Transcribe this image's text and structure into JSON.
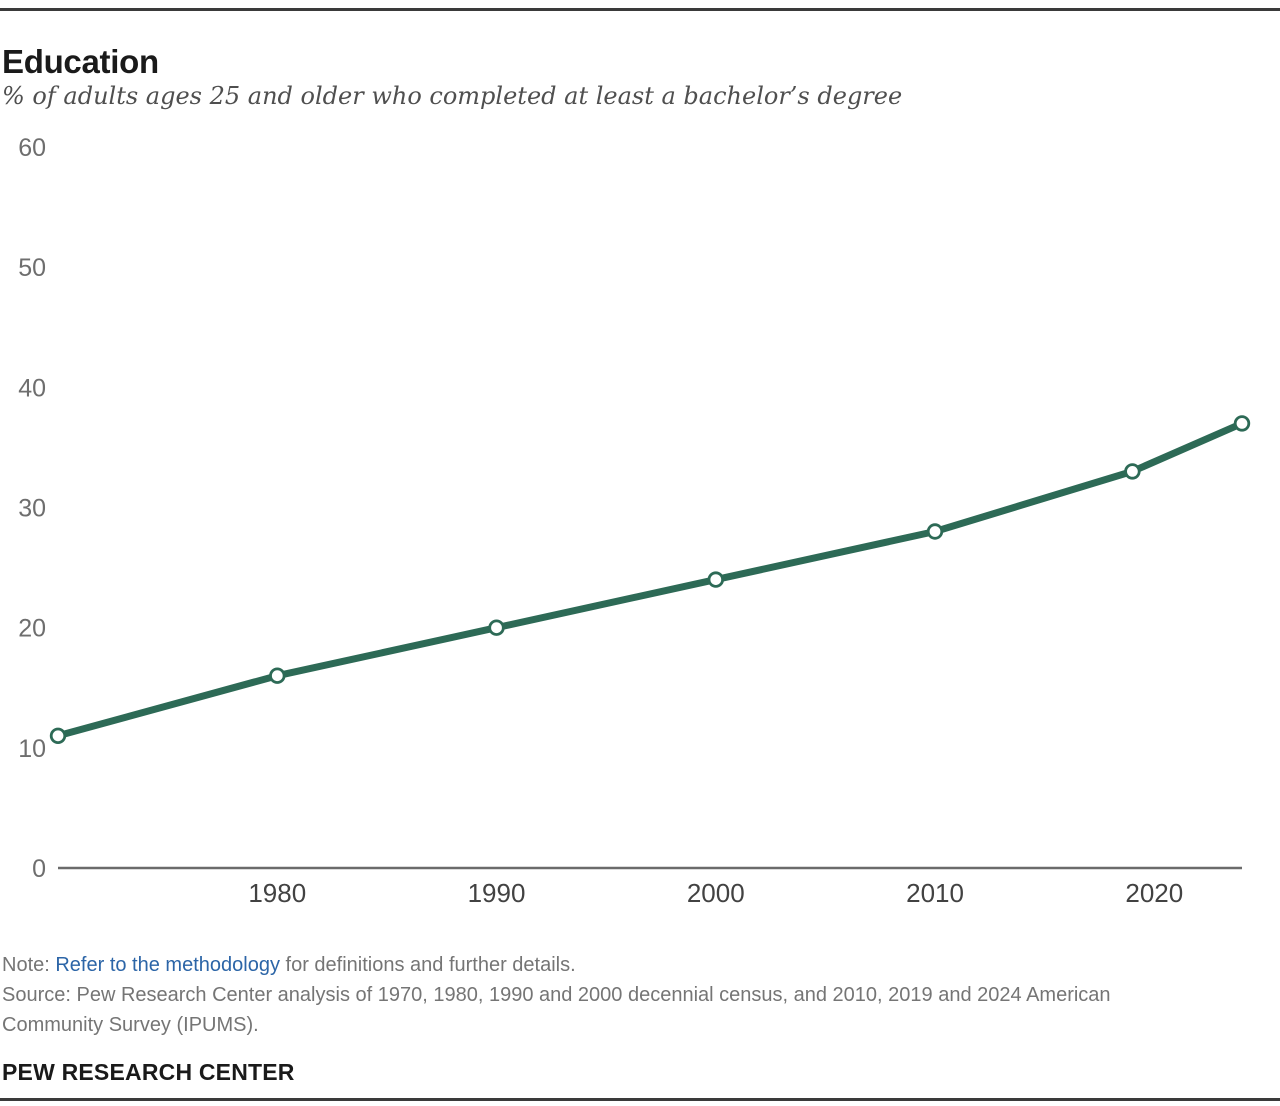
{
  "chart_data": {
    "type": "line",
    "title": "Education",
    "subtitle": "% of adults ages 25 and older who completed at least a bachelor’s degree",
    "series_name": "% with at least a bachelor's degree",
    "x": [
      1970,
      1980,
      1990,
      2000,
      2010,
      2019,
      2024
    ],
    "values": [
      11,
      16,
      20,
      24,
      28,
      33,
      37
    ],
    "x_ticks": [
      1980,
      1990,
      2000,
      2010,
      2020
    ],
    "y_ticks": [
      0,
      10,
      20,
      30,
      40,
      50,
      60
    ],
    "xlim": [
      1970,
      2024
    ],
    "ylim": [
      0,
      60
    ],
    "grid": false,
    "legend": "none",
    "marker": "open-circle",
    "line_color": "#2d6a56",
    "marker_fill": "#ffffff",
    "axis_line_color": "#6b6b6b",
    "y_tick_color": "#6e6e6e",
    "x_tick_color": "#424242"
  },
  "footnotes": {
    "note_label": "Note: ",
    "note_link": "Refer to the methodology",
    "note_rest": " for definitions and further details.",
    "source": "Source: Pew Research Center analysis of 1970, 1980, 1990 and 2000 decennial census, and 2010, 2019 and 2024 American Community Survey (IPUMS).",
    "link_color": "#2c65a7"
  },
  "footer": {
    "brand": "PEW RESEARCH CENTER"
  }
}
